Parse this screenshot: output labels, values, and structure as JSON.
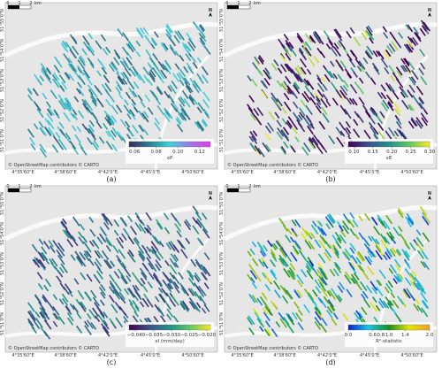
{
  "attribution": "© OpenStreetMap contributors © CARTO",
  "scale_labels": [
    "0",
    "1",
    "2",
    "km"
  ],
  "north": "N",
  "x_labels": [
    "4°35'60\"E",
    "4°38'60\"E",
    "4°42'0\"E",
    "4°45'0\"E",
    "4°50'60\"E"
  ],
  "y_labels": [
    "51°55'0\"N",
    "51°54'0\"N",
    "51°53'0\"N",
    "51°52'0\"N",
    "51°51'0\"N"
  ],
  "panels": [
    {
      "caption": "(a)",
      "colorbar": {
        "label": "xP",
        "lim": [
          0.055,
          0.13
        ],
        "ticks": [
          0.06,
          0.08,
          {
            "value": 0.1,
            "label": "0.10"
          },
          0.12
        ],
        "colors": [
          "#3b2a5e",
          "#2a7f8e",
          "#3fd2d8",
          "#a078e6",
          "#e23ce8"
        ]
      }
    },
    {
      "caption": "(b)",
      "colorbar": {
        "label": "xE",
        "lim": [
          0.085,
          0.3
        ],
        "ticks": [
          {
            "value": 0.1,
            "label": "0.10"
          },
          0.15,
          {
            "value": 0.2,
            "label": "0.20"
          },
          0.25,
          {
            "value": 0.3,
            "label": "0.30"
          }
        ],
        "colors": [
          "#440154",
          "#3b528b",
          "#21918c",
          "#5ec962",
          "#fde725"
        ]
      }
    },
    {
      "caption": "(c)",
      "colorbar": {
        "label": "xI (mm/day)",
        "lim": [
          -0.042,
          -0.019
        ],
        "ticks": [
          {
            "value": -0.04,
            "label": "−0.040"
          },
          {
            "value": -0.035,
            "label": "−0.035"
          },
          {
            "value": -0.03,
            "label": "−0.030"
          },
          {
            "value": -0.025,
            "label": "−0.025"
          },
          {
            "value": -0.02,
            "label": "−0.020"
          }
        ],
        "colors": [
          "#440154",
          "#3b528b",
          "#21918c",
          "#5ec962",
          "#fde725"
        ]
      }
    },
    {
      "caption": "(d)",
      "colorbar": {
        "label": "R²-statistic",
        "lim": [
          0,
          2
        ],
        "ticks": [
          {
            "value": 0,
            "label": "0.0"
          },
          0.6,
          0.8,
          {
            "value": 1,
            "label": "1.0"
          },
          1.4,
          {
            "value": 2,
            "label": "2.0"
          }
        ],
        "colors": [
          "#0a1fd6",
          "#18c8e8",
          "#1a8f1a",
          "#e6e600",
          "#f0a020"
        ]
      }
    }
  ]
}
